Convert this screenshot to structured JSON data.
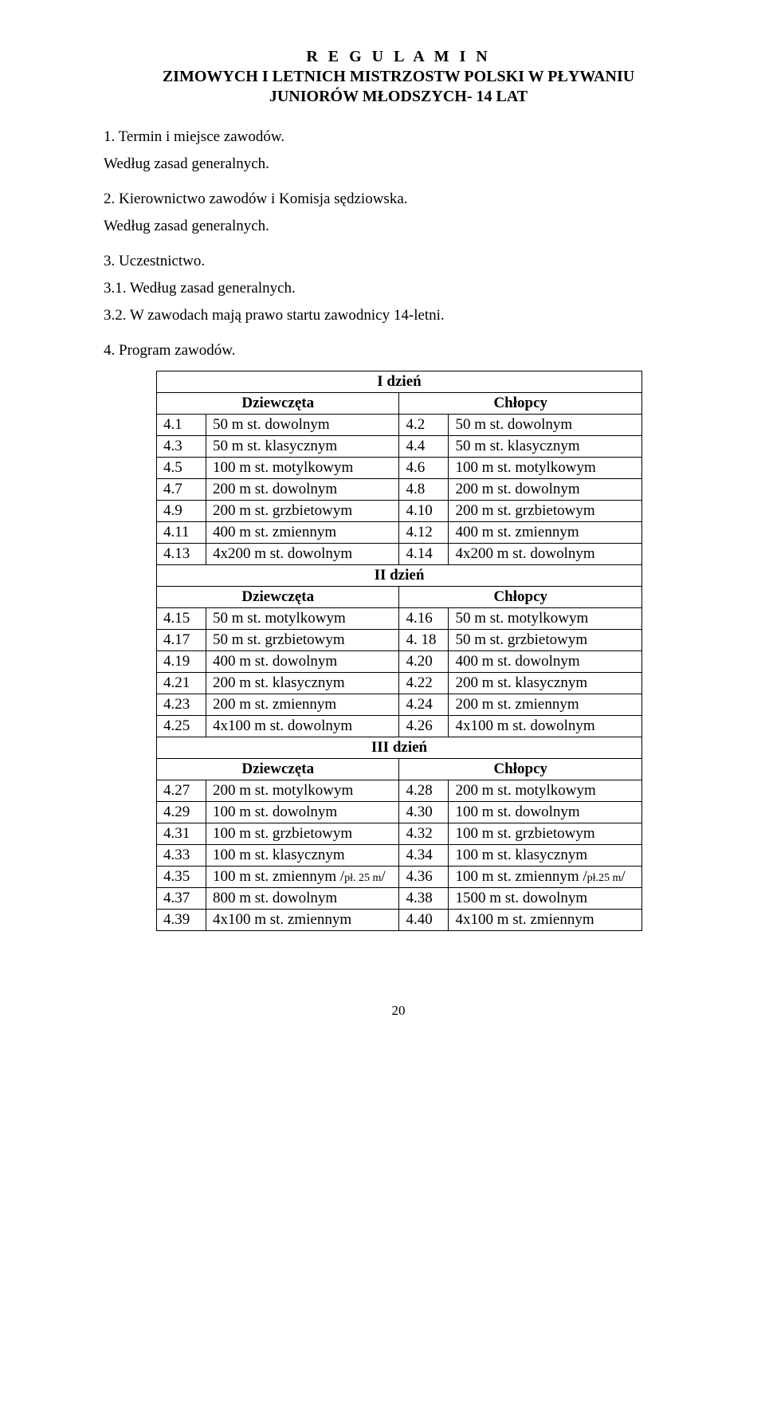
{
  "title_regulamin": "R E G U L A M I N",
  "title_line2": "ZIMOWYCH I LETNICH MISTRZOSTW POLSKI W PŁYWANIU",
  "title_line3": "JUNIORÓW MŁODSZYCH- 14 LAT",
  "sec1_label": "1. Termin i miejsce zawodów.",
  "sec1_body": "Według zasad generalnych.",
  "sec2_label": "2. Kierownictwo zawodów i Komisja sędziowska.",
  "sec2_body": "Według zasad generalnych.",
  "sec3_label": "3. Uczestnictwo.",
  "sec3_line1": "3.1. Według zasad generalnych.",
  "sec3_line2": "3.2. W zawodach mają prawo startu zawodnicy 14-letni.",
  "sec4_label": "4. Program zawodów.",
  "day1": "I dzień",
  "day2": "II dzień",
  "day3": "III dzień",
  "girls": "Dziewczęta",
  "boys": "Chłopcy",
  "rows_d1": [
    {
      "ln": "4.1",
      "le": "50 m st. dowolnym",
      "rn": "4.2",
      "re": "50 m st. dowolnym"
    },
    {
      "ln": "4.3",
      "le": "50 m st. klasycznym",
      "rn": "4.4",
      "re": "50 m st. klasycznym"
    },
    {
      "ln": "4.5",
      "le": "100 m st. motylkowym",
      "rn": "4.6",
      "re": "100 m st. motylkowym"
    },
    {
      "ln": "4.7",
      "le": "200 m st. dowolnym",
      "rn": "4.8",
      "re": "200 m st. dowolnym"
    },
    {
      "ln": "4.9",
      "le": "200 m st. grzbietowym",
      "rn": "4.10",
      "re": "200 m st. grzbietowym"
    },
    {
      "ln": "4.11",
      "le": "400 m st. zmiennym",
      "rn": "4.12",
      "re": "400 m st. zmiennym"
    },
    {
      "ln": "4.13",
      "le": "4x200 m st. dowolnym",
      "rn": "4.14",
      "re": "4x200 m st. dowolnym"
    }
  ],
  "rows_d2": [
    {
      "ln": "4.15",
      "le": "50 m st. motylkowym",
      "rn": "4.16",
      "re": "50 m st. motylkowym"
    },
    {
      "ln": "4.17",
      "le": "50 m st. grzbietowym",
      "rn": "4. 18",
      "re": "50 m st. grzbietowym"
    },
    {
      "ln": "4.19",
      "le": "400 m st. dowolnym",
      "rn": "4.20",
      "re": "400 m st. dowolnym"
    },
    {
      "ln": "4.21",
      "le": "200 m st. klasycznym",
      "rn": "4.22",
      "re": "200 m st. klasycznym"
    },
    {
      "ln": "4.23",
      "le": "200 m st. zmiennym",
      "rn": "4.24",
      "re": "200 m st. zmiennym"
    },
    {
      "ln": "4.25",
      "le": "4x100 m st. dowolnym",
      "rn": "4.26",
      "re": "4x100 m st. dowolnym"
    }
  ],
  "rows_d3": [
    {
      "ln": "4.27",
      "le": "200 m st. motylkowym",
      "rn": "4.28",
      "re": "200 m st. motylkowym"
    },
    {
      "ln": "4.29",
      "le": "100 m st. dowolnym",
      "rn": "4.30",
      "re": "100 m st. dowolnym"
    },
    {
      "ln": "4.31",
      "le": "100 m st. grzbietowym",
      "rn": "4.32",
      "re": "100 m st. grzbietowym"
    },
    {
      "ln": "4.33",
      "le": "100 m st. klasycznym",
      "rn": "4.34",
      "re": "100 m st. klasycznym"
    },
    {
      "ln": "4.35",
      "le": "100 m st. zmiennym /pł. 25 m/",
      "rn": "4.36",
      "re": "100 m st. zmiennym /pł.25 m/",
      "small": true
    },
    {
      "ln": "4.37",
      "le": "800 m st. dowolnym",
      "rn": "4.38",
      "re": "1500 m st. dowolnym"
    },
    {
      "ln": "4.39",
      "le": "4x100 m st. zmiennym",
      "rn": "4.40",
      "re": "4x100 m st. zmiennym"
    }
  ],
  "pagenum": "20"
}
